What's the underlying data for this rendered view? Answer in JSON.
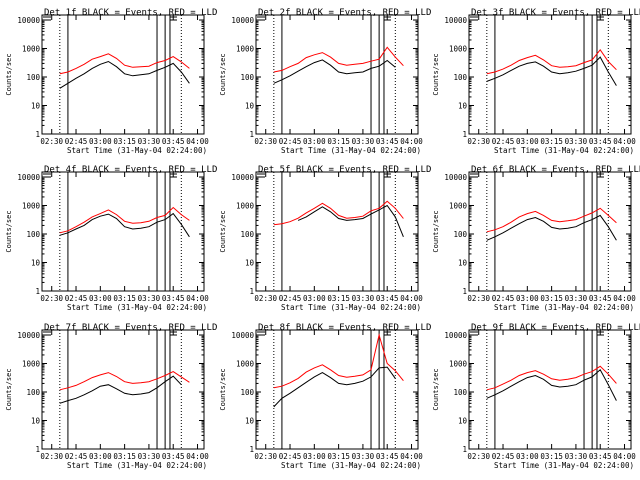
{
  "chart_data": {
    "type": "line",
    "layout": "3x3",
    "shared": {
      "title_suffix": "BLACK = Events, RED = LLD",
      "xlabel": "Start Time (31-May-04 02:24:00)",
      "ylabel": "Counts/sec",
      "xlim": [
        "02:24",
        "04:04"
      ],
      "ylim": [
        1,
        15000
      ],
      "yscale": "log",
      "x_ticks": [
        "02:30",
        "02:45",
        "03:00",
        "03:15",
        "03:30",
        "03:45",
        "04:00"
      ],
      "y_ticks": [
        "1",
        "10",
        "100",
        "1000",
        "10000"
      ],
      "series_colors": {
        "Events": "#000000",
        "LLD": "#ff0000"
      },
      "marker_lines": {
        "dotted": [
          "02:35",
          "03:50"
        ],
        "solid": [
          "02:40",
          "03:35",
          "03:40",
          "03:43"
        ]
      },
      "grid": false,
      "x_values": [
        "02:30",
        "02:35",
        "02:40",
        "02:45",
        "02:50",
        "02:55",
        "03:00",
        "03:05",
        "03:10",
        "03:15",
        "03:20",
        "03:25",
        "03:30",
        "03:35",
        "03:40",
        "03:45",
        "03:50",
        "03:55",
        "04:00"
      ]
    },
    "panels": [
      {
        "title": "Det 1f",
        "series": [
          {
            "name": "LLD",
            "values": [
              null,
              130,
              150,
              200,
              280,
              420,
              520,
              650,
              450,
              260,
              220,
              230,
              240,
              320,
              380,
              520,
              340,
              200,
              null
            ]
          },
          {
            "name": "Events",
            "values": [
              null,
              40,
              60,
              90,
              130,
              200,
              280,
              350,
              230,
              130,
              110,
              120,
              130,
              170,
              220,
              300,
              150,
              60,
              null
            ]
          }
        ]
      },
      {
        "title": "Det 2f",
        "series": [
          {
            "name": "LLD",
            "values": [
              null,
              150,
              170,
              230,
              300,
              480,
              600,
              720,
              500,
              300,
              260,
              280,
              300,
              360,
              420,
              1100,
              500,
              250,
              null
            ]
          },
          {
            "name": "Events",
            "values": [
              null,
              60,
              80,
              110,
              160,
              230,
              320,
              400,
              260,
              150,
              130,
              140,
              150,
              200,
              240,
              380,
              220,
              null,
              null
            ]
          }
        ]
      },
      {
        "title": "Det 3f",
        "series": [
          {
            "name": "LLD",
            "values": [
              null,
              130,
              150,
              190,
              260,
              380,
              480,
              580,
              400,
              250,
              220,
              230,
              250,
              320,
              400,
              900,
              350,
              180,
              null
            ]
          },
          {
            "name": "Events",
            "values": [
              null,
              70,
              90,
              120,
              170,
              240,
              300,
              340,
              240,
              150,
              130,
              140,
              160,
              200,
              260,
              500,
              150,
              50,
              null
            ]
          }
        ]
      },
      {
        "title": "Det 4f",
        "series": [
          {
            "name": "LLD",
            "values": [
              null,
              110,
              130,
              180,
              260,
              400,
              520,
              700,
              480,
              280,
              240,
              250,
              280,
              380,
              450,
              850,
              480,
              300,
              null
            ]
          },
          {
            "name": "Events",
            "values": [
              null,
              90,
              110,
              150,
              200,
              320,
              420,
              500,
              350,
              180,
              150,
              160,
              180,
              260,
              320,
              520,
              220,
              80,
              null
            ]
          }
        ]
      },
      {
        "title": "Det 5f",
        "series": [
          {
            "name": "LLD",
            "values": [
              null,
              210,
              230,
              270,
              360,
              550,
              800,
              1200,
              800,
              450,
              360,
              380,
              420,
              650,
              800,
              1400,
              800,
              350,
              null
            ]
          },
          {
            "name": "Events",
            "values": [
              null,
              null,
              null,
              null,
              300,
              400,
              600,
              900,
              600,
              350,
              300,
              320,
              350,
              500,
              700,
              1000,
              400,
              80,
              null
            ]
          }
        ]
      },
      {
        "title": "Det 6f",
        "series": [
          {
            "name": "LLD",
            "values": [
              null,
              120,
              140,
              180,
              260,
              400,
              520,
              620,
              450,
              300,
              270,
              290,
              320,
              420,
              550,
              800,
              450,
              250,
              null
            ]
          },
          {
            "name": "Events",
            "values": [
              null,
              60,
              80,
              110,
              160,
              230,
              320,
              380,
              280,
              170,
              150,
              160,
              180,
              250,
              320,
              450,
              180,
              60,
              null
            ]
          }
        ]
      },
      {
        "title": "Det 7f",
        "series": [
          {
            "name": "LLD",
            "values": [
              null,
              120,
              140,
              170,
              230,
              320,
              400,
              480,
              350,
              230,
              200,
              210,
              230,
              290,
              380,
              520,
              340,
              220,
              null
            ]
          },
          {
            "name": "Events",
            "values": [
              null,
              40,
              50,
              60,
              80,
              110,
              160,
              180,
              130,
              90,
              80,
              85,
              95,
              140,
              230,
              360,
              180,
              null,
              null
            ]
          }
        ]
      },
      {
        "title": "Det 8f",
        "series": [
          {
            "name": "LLD",
            "values": [
              null,
              140,
              160,
              210,
              300,
              500,
              700,
              900,
              600,
              380,
              330,
              360,
              400,
              600,
              10000,
              1000,
              560,
              250,
              null
            ]
          },
          {
            "name": "Events",
            "values": [
              null,
              30,
              60,
              90,
              140,
              220,
              340,
              480,
              320,
              200,
              180,
              200,
              240,
              340,
              700,
              750,
              300,
              null,
              null
            ]
          }
        ]
      },
      {
        "title": "Det 9f",
        "series": [
          {
            "name": "LLD",
            "values": [
              null,
              120,
              140,
              190,
              260,
              380,
              480,
              560,
              420,
              290,
              260,
              280,
              320,
              420,
              520,
              800,
              420,
              200,
              null
            ]
          },
          {
            "name": "Events",
            "values": [
              null,
              60,
              80,
              110,
              160,
              230,
              320,
              380,
              280,
              170,
              150,
              160,
              180,
              260,
              340,
              600,
              180,
              50,
              null
            ]
          }
        ]
      }
    ]
  }
}
